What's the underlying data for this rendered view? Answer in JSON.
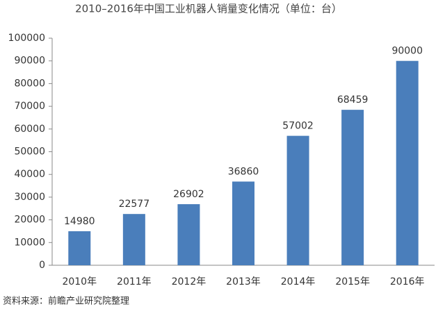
{
  "chart_data": {
    "type": "bar",
    "title": "2010–2016年中国工业机器人销量变化情况（单位：台）",
    "categories": [
      "2010年",
      "2011年",
      "2012年",
      "2013年",
      "2014年",
      "2015年",
      "2016年"
    ],
    "values": [
      14980,
      22577,
      26902,
      36860,
      57002,
      68459,
      90000
    ],
    "color": "#4a7ebb",
    "ylim": [
      0,
      100000
    ],
    "yticks": [
      0,
      10000,
      20000,
      30000,
      40000,
      50000,
      60000,
      70000,
      80000,
      90000,
      100000
    ],
    "grid": false,
    "source": "资料来源：前瞻产业研究院整理"
  }
}
